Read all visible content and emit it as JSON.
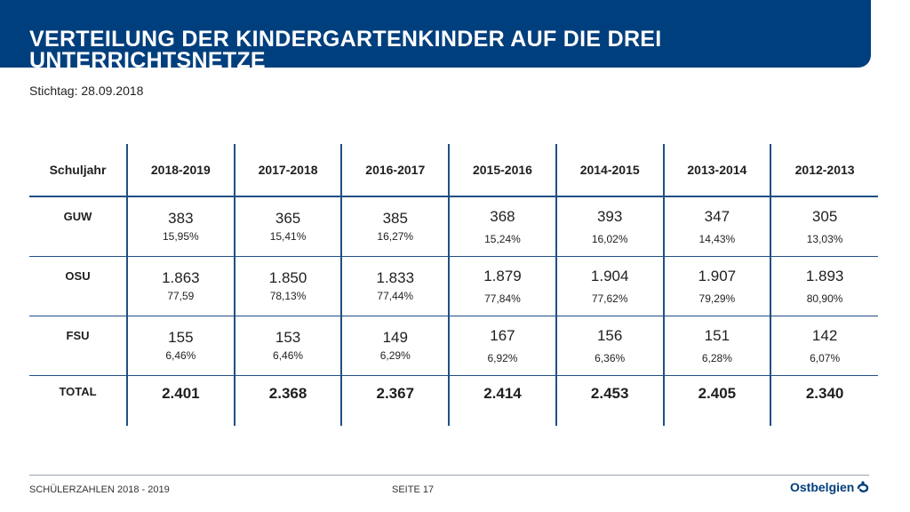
{
  "header": {
    "title": "VERTEILUNG DER KINDERGARTENKINDER AUF DIE DREI UNTERRICHTSNETZE",
    "subtitle": "Stichtag: 28.09.2018"
  },
  "table": {
    "header_label": "Schuljahr",
    "years": [
      "2018-2019",
      "2017-2018",
      "2016-2017",
      "2015-2016",
      "2014-2015",
      "2013-2014",
      "2012-2013"
    ],
    "rows": [
      {
        "label": "GUW",
        "values": [
          "383",
          "365",
          "385",
          "368",
          "393",
          "347",
          "305"
        ],
        "percents": [
          "15,95%",
          "15,41%",
          "16,27%",
          "15,24%",
          "16,02%",
          "14,43%",
          "13,03%"
        ]
      },
      {
        "label": "OSU",
        "values": [
          "1.863",
          "1.850",
          "1.833",
          "1.879",
          "1.904",
          "1.907",
          "1.893"
        ],
        "percents": [
          "77,59",
          "78,13%",
          "77,44%",
          "77,84%",
          "77,62%",
          "79,29%",
          "80,90%"
        ]
      },
      {
        "label": "FSU",
        "values": [
          "155",
          "153",
          "149",
          "167",
          "156",
          "151",
          "142"
        ],
        "percents": [
          "6,46%",
          "6,46%",
          "6,29%",
          "6,92%",
          "6,36%",
          "6,28%",
          "6,07%"
        ]
      }
    ],
    "total": {
      "label": "TOTAL",
      "values": [
        "2.401",
        "2.368",
        "2.367",
        "2.414",
        "2.453",
        "2.405",
        "2.340"
      ]
    }
  },
  "footer": {
    "left": "SCHÜLERZAHLEN 2018 - 2019",
    "page": "SEITE 17",
    "logo_text": "Ostbelgien"
  },
  "colors": {
    "brand_blue": "#003f7d",
    "grid_line": "#1f4f85"
  },
  "icons": {
    "logo_mark": "ostbelgien-wave-icon"
  }
}
